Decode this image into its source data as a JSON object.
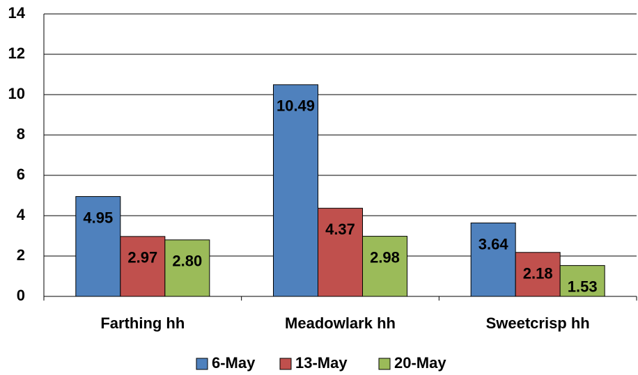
{
  "chart_data": {
    "type": "bar",
    "categories": [
      "Farthing hh",
      "Meadowlark hh",
      "Sweetcrisp hh"
    ],
    "series": [
      {
        "name": "6-May",
        "color": "#4f81bd",
        "values": [
          4.95,
          10.49,
          3.64
        ],
        "value_labels": [
          "4.95",
          "10.49",
          "3.64"
        ]
      },
      {
        "name": "13-May",
        "color": "#c0504d",
        "values": [
          2.97,
          4.37,
          2.18
        ],
        "value_labels": [
          "2.97",
          "4.37",
          "2.18"
        ]
      },
      {
        "name": "20-May",
        "color": "#9bbb59",
        "values": [
          2.8,
          2.98,
          1.53
        ],
        "value_labels": [
          "2.80",
          "2.98",
          "1.53"
        ]
      }
    ],
    "ylim": [
      0,
      14
    ],
    "yticks": [
      0,
      2,
      4,
      6,
      8,
      10,
      12,
      14
    ],
    "grid": true,
    "legend": "bottom"
  }
}
